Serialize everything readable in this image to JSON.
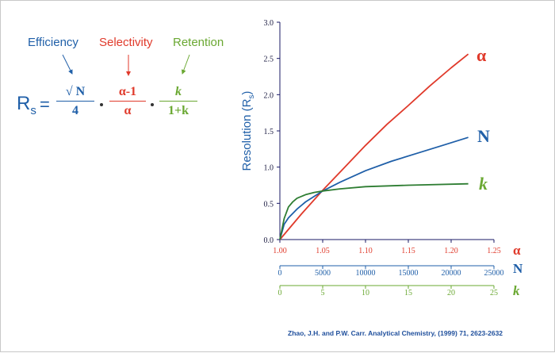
{
  "equation": {
    "efficiency_label": "Efficiency",
    "selectivity_label": "Selectivity",
    "retention_label": "Retention",
    "lhs_main": "R",
    "lhs_sub": "s",
    "equals": "=",
    "term1_num": "√ N",
    "term1_den": "4",
    "term2_num": "α-1",
    "term2_den": "α",
    "term3_num": "k",
    "term3_den": "1+k"
  },
  "colors": {
    "alpha": "#e03a2b",
    "N": "#1f5fa8",
    "k": "#6aa832",
    "k_line": "#2e7d32",
    "axis": "#1a1a66"
  },
  "chart_data": {
    "type": "line",
    "ylabel": "Resolution (R",
    "ylabel_sub": "s",
    "ylabel_close": ")",
    "ylim": [
      0,
      3.0
    ],
    "y_ticks": [
      "0.0",
      "0.5",
      "1.0",
      "1.5",
      "2.0",
      "2.5",
      "3.0"
    ],
    "x_axes": [
      {
        "symbol": "α",
        "ticks": [
          "1.00",
          "1.05",
          "1.10",
          "1.15",
          "1.20",
          "1.25"
        ],
        "range": [
          1.0,
          1.25
        ]
      },
      {
        "symbol": "N",
        "ticks": [
          "0",
          "5000",
          "10000",
          "15000",
          "20000",
          "25000"
        ],
        "range": [
          0,
          25000
        ]
      },
      {
        "symbol": "k",
        "ticks": [
          "0",
          "5",
          "10",
          "15",
          "20",
          "25"
        ],
        "range": [
          0,
          25
        ]
      }
    ],
    "series": [
      {
        "name": "α",
        "axis": 0,
        "x": [
          1.0,
          1.025,
          1.05,
          1.075,
          1.1,
          1.125,
          1.15,
          1.175,
          1.2,
          1.22
        ],
        "y": [
          0.0,
          0.35,
          0.68,
          0.99,
          1.3,
          1.59,
          1.85,
          2.12,
          2.37,
          2.56
        ]
      },
      {
        "name": "N",
        "axis": 1,
        "x": [
          0,
          500,
          1000,
          2000,
          3000,
          5000,
          7000,
          10000,
          13000,
          16000,
          19000,
          22000
        ],
        "y": [
          0.0,
          0.21,
          0.3,
          0.42,
          0.52,
          0.67,
          0.79,
          0.95,
          1.08,
          1.19,
          1.3,
          1.41
        ]
      },
      {
        "name": "k",
        "axis": 2,
        "x": [
          0,
          0.5,
          1,
          1.5,
          2,
          3,
          4,
          5,
          7,
          10,
          15,
          22
        ],
        "y": [
          0.0,
          0.29,
          0.45,
          0.52,
          0.57,
          0.62,
          0.65,
          0.67,
          0.7,
          0.73,
          0.75,
          0.77
        ]
      }
    ]
  },
  "citation": "Zhao, J.H. and P.W. Carr. Analytical Chemistry, (1999) 71, 2623-2632"
}
